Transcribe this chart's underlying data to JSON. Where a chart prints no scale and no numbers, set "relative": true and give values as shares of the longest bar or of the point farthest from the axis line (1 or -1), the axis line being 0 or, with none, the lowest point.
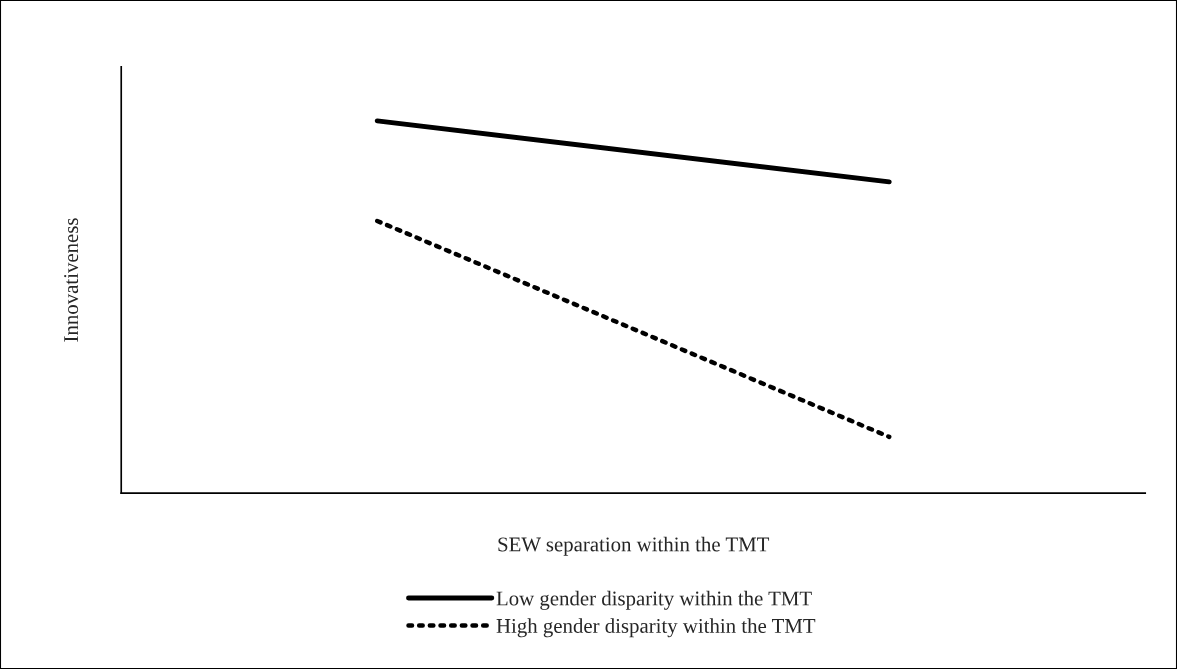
{
  "chart_data": {
    "type": "line",
    "xlabel": "SEW separation within the TMT",
    "ylabel": "Innovativeness",
    "categories": [
      null,
      null
    ],
    "relative": true,
    "legend": "bottom",
    "series": [
      {
        "name": "Low gender disparity within the TMT",
        "color": "#000000",
        "values": [
          1,
          0.836
        ],
        "line_style": "solid"
      },
      {
        "name": "High gender disparity within the TMT",
        "color": "#000000",
        "values": [
          0.731,
          0.151
        ],
        "line_style": "dotted"
      }
    ]
  }
}
